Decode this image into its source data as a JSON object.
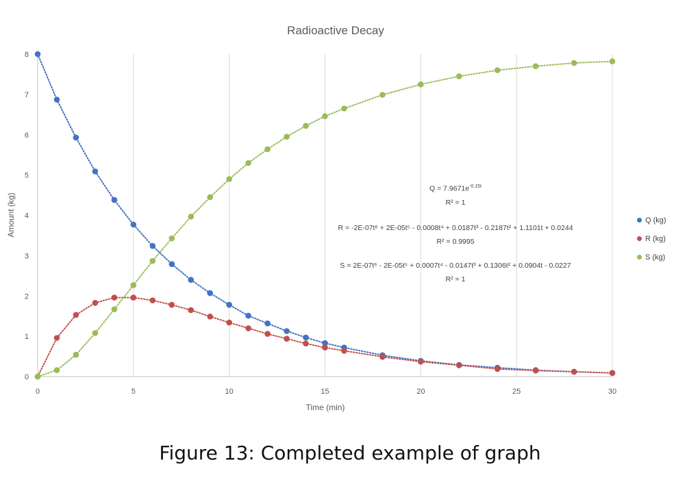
{
  "chart_data": {
    "type": "scatter",
    "title": "Radioactive Decay",
    "xlabel": "Time (min)",
    "ylabel": "Amount (kg)",
    "xlim": [
      0,
      30
    ],
    "ylim": [
      0,
      8
    ],
    "xticks": [
      0,
      5,
      10,
      15,
      20,
      25,
      30
    ],
    "yticks": [
      0,
      1,
      2,
      3,
      4,
      5,
      6,
      7,
      8
    ],
    "grid": "vertical",
    "legend_position": "right",
    "trendline_style": "dotted",
    "series": [
      {
        "name": "Q (kg)",
        "color": "#4472C4",
        "x": [
          0,
          1,
          2,
          3,
          4,
          5,
          6,
          7,
          8,
          9,
          10,
          11,
          12,
          13,
          14,
          15,
          16,
          18,
          20,
          22,
          24,
          26,
          28,
          30
        ],
        "y": [
          8.0,
          6.87,
          5.93,
          5.09,
          4.38,
          3.77,
          3.24,
          2.79,
          2.4,
          2.07,
          1.78,
          1.51,
          1.32,
          1.13,
          0.97,
          0.83,
          0.72,
          0.53,
          0.39,
          0.29,
          0.22,
          0.16,
          0.12,
          0.09
        ]
      },
      {
        "name": "R (kg)",
        "color": "#C0504D",
        "x": [
          0,
          1,
          2,
          3,
          4,
          5,
          6,
          7,
          8,
          9,
          10,
          11,
          12,
          13,
          14,
          15,
          16,
          18,
          20,
          22,
          24,
          26,
          28,
          30
        ],
        "y": [
          0,
          0.96,
          1.53,
          1.83,
          1.96,
          1.96,
          1.89,
          1.78,
          1.65,
          1.49,
          1.34,
          1.2,
          1.06,
          0.94,
          0.82,
          0.72,
          0.64,
          0.49,
          0.37,
          0.28,
          0.19,
          0.15,
          0.12,
          0.09
        ]
      },
      {
        "name": "S (kg)",
        "color": "#9BBB59",
        "x": [
          0,
          1,
          2,
          3,
          4,
          5,
          6,
          7,
          8,
          9,
          10,
          11,
          12,
          13,
          14,
          15,
          16,
          18,
          20,
          22,
          24,
          26,
          28,
          30
        ],
        "y": [
          0,
          0.16,
          0.54,
          1.08,
          1.67,
          2.27,
          2.87,
          3.43,
          3.97,
          4.45,
          4.9,
          5.3,
          5.64,
          5.95,
          6.22,
          6.46,
          6.65,
          6.99,
          7.25,
          7.45,
          7.6,
          7.7,
          7.78,
          7.82
        ]
      }
    ],
    "annotations": {
      "q_eq_main": "Q = 7.9671e",
      "q_eq_exp": "-0.15t",
      "q_r2": "R² = 1",
      "r_eq": "R = -2E-07t⁶ + 2E-05t⁵ - 0.0008t⁴ + 0.0187t³ - 0.2187t² + 1.1101t + 0.0244",
      "r_r2": "R² = 0.9995",
      "s_eq": "S = 2E-07t⁶ - 2E-05t⁵ + 0.0007t⁴ - 0.0147t³ + 0.1306t² + 0.0904t - 0.0227",
      "s_r2": "R² = 1"
    }
  },
  "caption": "Figure 13:  Completed example of graph"
}
